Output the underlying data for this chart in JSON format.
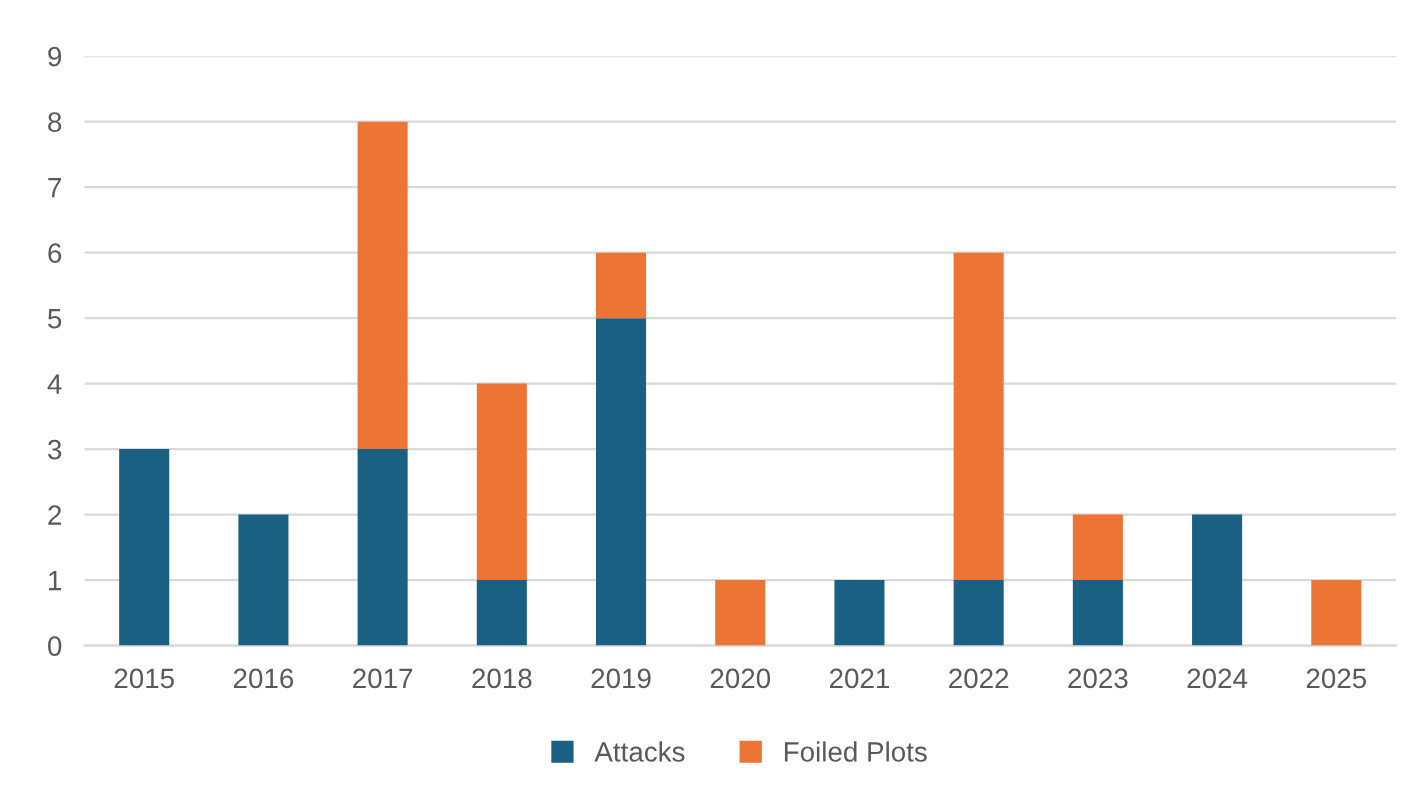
{
  "chart_data": {
    "type": "bar",
    "stacked": true,
    "categories": [
      "2015",
      "2016",
      "2017",
      "2018",
      "2019",
      "2020",
      "2021",
      "2022",
      "2023",
      "2024",
      "2025"
    ],
    "series": [
      {
        "name": "Attacks",
        "color": "#1a6083",
        "values": [
          3,
          2,
          3,
          1,
          5,
          0,
          1,
          1,
          1,
          2,
          0
        ]
      },
      {
        "name": "Foiled Plots",
        "color": "#ec7434",
        "values": [
          0,
          0,
          5,
          3,
          1,
          1,
          0,
          5,
          1,
          0,
          1
        ]
      }
    ],
    "ylim": [
      0,
      9
    ],
    "yticks": [
      0,
      1,
      2,
      3,
      4,
      5,
      6,
      7,
      8,
      9
    ],
    "grid": "y",
    "legend": "bottom"
  }
}
